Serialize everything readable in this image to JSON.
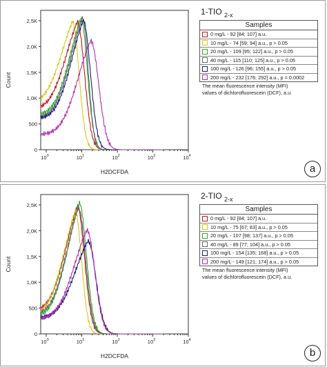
{
  "chart_data": [
    {
      "type": "line",
      "panel_label": "a",
      "title_main": "1-TIO",
      "title_sub": "2-x",
      "xlabel": "H2DCFDA",
      "ylabel": "Count",
      "x_scale": "log",
      "xlim": [
        0.7,
        10000
      ],
      "ylim": [
        0,
        2700
      ],
      "x_tick_labels": [
        [
          "10",
          "0"
        ],
        [
          "10",
          "1"
        ],
        [
          "10",
          "2"
        ],
        [
          "10",
          "3"
        ],
        [
          "10",
          "4"
        ]
      ],
      "y_ticks": [
        0,
        500,
        1000,
        1500,
        2000,
        2500
      ],
      "y_tick_labels": [
        "0",
        "500",
        "1,0K",
        "1,5K",
        "2,0K",
        "2,5K"
      ],
      "legend_title": "Samples",
      "note": [
        "The mean fluorescence intensity (MFI)",
        "values of dichlorofluorescein (DCF), a.u."
      ],
      "series": [
        {
          "name": "0 mg/L - 92 [84; 107] a.u.",
          "color": "#c0141c",
          "peak_x": 7.5,
          "peak_y": 2480,
          "left_y": 840,
          "width_l": 0.42,
          "width_r": 0.2
        },
        {
          "name": "10 mg/L - 74 [59; 94] a.u., p > 0.05",
          "color": "#d4c81a",
          "peak_x": 5.5,
          "peak_y": 2490,
          "left_y": 1000,
          "width_l": 0.45,
          "width_r": 0.18
        },
        {
          "name": "20 mg/L - 109 [95; 122] a.u., p > 0.05",
          "color": "#28a828",
          "peak_x": 9.5,
          "peak_y": 2540,
          "left_y": 700,
          "width_l": 0.38,
          "width_r": 0.18
        },
        {
          "name": "40 mg/L - 115 [110; 125] a.u., p > 0.05",
          "color": "#666666",
          "peak_x": 10.5,
          "peak_y": 2560,
          "left_y": 640,
          "width_l": 0.4,
          "width_r": 0.16
        },
        {
          "name": "100 mg/L - 126 [96; 155] a.u., p > 0.05",
          "color": "#1a1a7a",
          "peak_x": 11,
          "peak_y": 2500,
          "left_y": 620,
          "width_l": 0.38,
          "width_r": 0.2
        },
        {
          "name": "200 mg/L - 232 [176; 292] a.u., p = 0.0002",
          "color": "#b42ab0",
          "peak_x": 18,
          "peak_y": 2110,
          "left_y": 300,
          "width_l": 0.4,
          "width_r": 0.22
        }
      ]
    },
    {
      "type": "line",
      "panel_label": "b",
      "title_main": "2-TIO",
      "title_sub": "2-x",
      "xlabel": "H2DCFDA",
      "ylabel": "Count",
      "x_scale": "log",
      "xlim": [
        0.7,
        10000
      ],
      "ylim": [
        0,
        2700
      ],
      "x_tick_labels": [
        [
          "10",
          "0"
        ],
        [
          "10",
          "1"
        ],
        [
          "10",
          "2"
        ],
        [
          "10",
          "3"
        ],
        [
          "10",
          "4"
        ]
      ],
      "y_ticks": [
        0,
        500,
        1000,
        1500,
        2000,
        2500
      ],
      "y_tick_labels": [
        "0",
        "500",
        "1,0K",
        "1,5K",
        "2,0K",
        "2,5K"
      ],
      "legend_title": "Samples",
      "note": [
        "The mean fluorescence intensity (MFI)",
        "values of dichlorofluorescein (DCF), a.u."
      ],
      "series": [
        {
          "name": "0 mg/L - 92 [84; 107] a.u.",
          "color": "#c0141c",
          "peak_x": 7.5,
          "peak_y": 2480,
          "left_y": 500,
          "width_l": 0.42,
          "width_r": 0.2
        },
        {
          "name": "10 mg/L - 75 [67; 83] a.u., p > 0.05",
          "color": "#d4c81a",
          "peak_x": 6.5,
          "peak_y": 2380,
          "left_y": 450,
          "width_l": 0.42,
          "width_r": 0.18
        },
        {
          "name": "20 mg/L - 107 [98; 137] a.u., p > 0.05",
          "color": "#28a828",
          "peak_x": 8.5,
          "peak_y": 2540,
          "left_y": 380,
          "width_l": 0.4,
          "width_r": 0.2
        },
        {
          "name": "40 mg/L - 89 [77; 104] a.u., p > 0.05",
          "color": "#666666",
          "peak_x": 8,
          "peak_y": 2450,
          "left_y": 420,
          "width_l": 0.4,
          "width_r": 0.2
        },
        {
          "name": "100 mg/L - 154 [135; 168] a.u., p > 0.05",
          "color": "#1a1a7a",
          "peak_x": 15,
          "peak_y": 1800,
          "left_y": 320,
          "width_l": 0.42,
          "width_r": 0.22
        },
        {
          "name": "200 mg/L - 149 [121; 174] a.u., p > 0.05",
          "color": "#b42ab0",
          "peak_x": 14,
          "peak_y": 2010,
          "left_y": 300,
          "width_l": 0.42,
          "width_r": 0.22
        }
      ]
    }
  ]
}
